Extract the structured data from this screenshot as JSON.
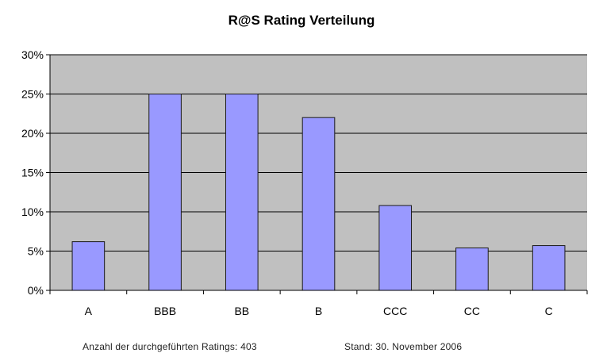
{
  "chart_data": {
    "type": "bar",
    "title": "R@S Rating Verteilung",
    "categories": [
      "A",
      "BBB",
      "BB",
      "B",
      "CCC",
      "CC",
      "C"
    ],
    "values": [
      6.2,
      25,
      25,
      22,
      10.8,
      5.4,
      5.7
    ],
    "ylim": [
      0,
      30
    ],
    "yticks": [
      0,
      5,
      10,
      15,
      20,
      25,
      30
    ],
    "ytick_labels": [
      "0%",
      "5%",
      "10%",
      "15%",
      "20%",
      "25%",
      "30%"
    ],
    "grid": true,
    "legend": "none",
    "colors": {
      "bar_fill": "#9999ff",
      "bar_stroke": "#1a1a1a",
      "plot_background": "#c0c0c0",
      "gridline": "#000000"
    }
  },
  "footer": {
    "count_label": "Anzahl der durchgeführten Ratings: 403",
    "date_label": "Stand: 30. November 2006"
  }
}
